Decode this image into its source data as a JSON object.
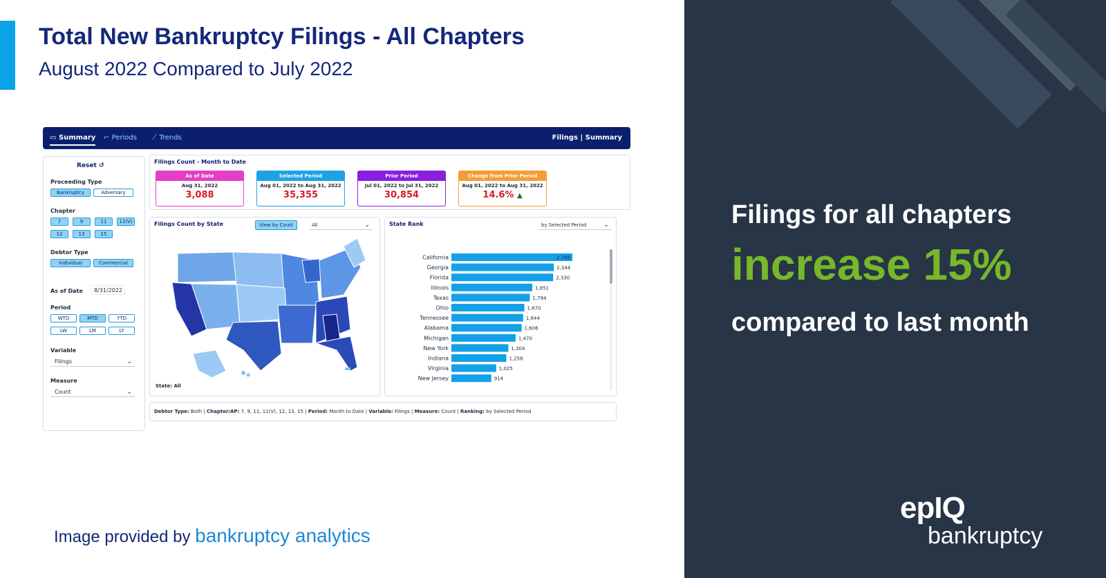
{
  "header": {
    "title": "Total New Bankruptcy Filings - All Chapters",
    "subtitle": "August 2022 Compared to July 2022"
  },
  "credit": {
    "prefix": "Image provided by",
    "brand": "bankruptcy analytics"
  },
  "panel": {
    "line1": "Filings for all chapters",
    "line2": "increase 15%",
    "line3": "compared to last month",
    "logo_top": "epIQ",
    "logo_bottom": "bankruptcy",
    "accent_color": "#76b82a",
    "background": "#273546"
  },
  "dashboard": {
    "nav": {
      "tabs": [
        {
          "label": "Summary",
          "icon": "monitor-icon",
          "active": true
        },
        {
          "label": "Periods",
          "icon": "step-line-icon",
          "active": false
        },
        {
          "label": "Trends",
          "icon": "trend-line-icon",
          "active": false
        }
      ],
      "right_label": "Filings  |  Summary"
    },
    "filters": {
      "reset_label": "Reset",
      "proceeding_type_label": "Proceeding Type",
      "proceeding_types": [
        {
          "label": "Bankruptcy",
          "on": true
        },
        {
          "label": "Adversary",
          "on": false
        }
      ],
      "chapter_label": "Chapter",
      "chapters": [
        {
          "label": "7",
          "on": true
        },
        {
          "label": "9",
          "on": true
        },
        {
          "label": "11",
          "on": true
        },
        {
          "label": "11(V)",
          "on": true
        },
        {
          "label": "12",
          "on": true
        },
        {
          "label": "13",
          "on": true
        },
        {
          "label": "15",
          "on": true
        }
      ],
      "debtor_type_label": "Debtor Type",
      "debtor_types": [
        {
          "label": "Individual",
          "on": true
        },
        {
          "label": "Commercial",
          "on": true
        }
      ],
      "as_of_label": "As of Date",
      "as_of_value": "8/31/2022",
      "period_label": "Period",
      "periods": [
        {
          "label": "WTD",
          "on": false
        },
        {
          "label": "MTD",
          "on": true
        },
        {
          "label": "YTD",
          "on": false
        },
        {
          "label": "LW",
          "on": false
        },
        {
          "label": "LM",
          "on": false
        },
        {
          "label": "LY",
          "on": false
        }
      ],
      "variable_label": "Variable",
      "variable_value": "Filings",
      "measure_label": "Measure",
      "measure_value": "Count"
    },
    "kpis": {
      "title": "Filings Count - Month to Date",
      "cards": [
        {
          "header": "As of Date",
          "date": "Aug 31, 2022",
          "value": "3,088",
          "color": "#e33fc6"
        },
        {
          "header": "Selected Period",
          "date": "Aug 01, 2022 to Aug 31, 2022",
          "value": "35,355",
          "color": "#1ea2e6"
        },
        {
          "header": "Prior Period",
          "date": "Jul 01, 2022 to Jul 31, 2022",
          "value": "30,854",
          "color": "#8a1fe0"
        },
        {
          "header": "Change from Prior Period",
          "date": "Aug 01, 2022 to Aug 31, 2022",
          "value": "14.6%",
          "color": "#f59c34",
          "trend": "▲"
        }
      ]
    },
    "map": {
      "title": "Filings Count by State",
      "button_label": "View by Court",
      "select_value": "All",
      "state_label": "State: All"
    },
    "rank": {
      "title": "State Rank",
      "select_value": "by Selected Period"
    },
    "footer": {
      "debtor_type_key": "Debtor Type:",
      "debtor_type_val": "Both |",
      "chapter_key": "Chapter/AP:",
      "chapter_val": "7, 9, 11, 11(V), 12, 13, 15 |",
      "period_key": "Period:",
      "period_val": "Month to Date |",
      "variable_key": "Variable:",
      "variable_val": "Filings |",
      "measure_key": "Measure:",
      "measure_val": "Count |",
      "ranking_key": "Ranking:",
      "ranking_val": "by Selected Period"
    }
  },
  "chart_data": {
    "type": "bar",
    "orientation": "horizontal",
    "title": "State Rank",
    "categories": [
      "California",
      "Georgia",
      "Florida",
      "Illinois",
      "Texas",
      "Ohio",
      "Tennessee",
      "Alabama",
      "Michigan",
      "New York",
      "Indiana",
      "Virginia",
      "New Jersey"
    ],
    "values": [
      2769,
      2344,
      2330,
      1851,
      1794,
      1670,
      1644,
      1606,
      1470,
      1304,
      1258,
      1025,
      914
    ],
    "value_labels": [
      "2,769",
      "2,344",
      "2,330",
      "1,851",
      "1,794",
      "1,670",
      "1,644",
      "1,606",
      "1,470",
      "1,304",
      "1,258",
      "1,025",
      "914"
    ],
    "xlim": [
      0,
      2769
    ],
    "bar_color": "#14a0e8",
    "grid": false
  }
}
